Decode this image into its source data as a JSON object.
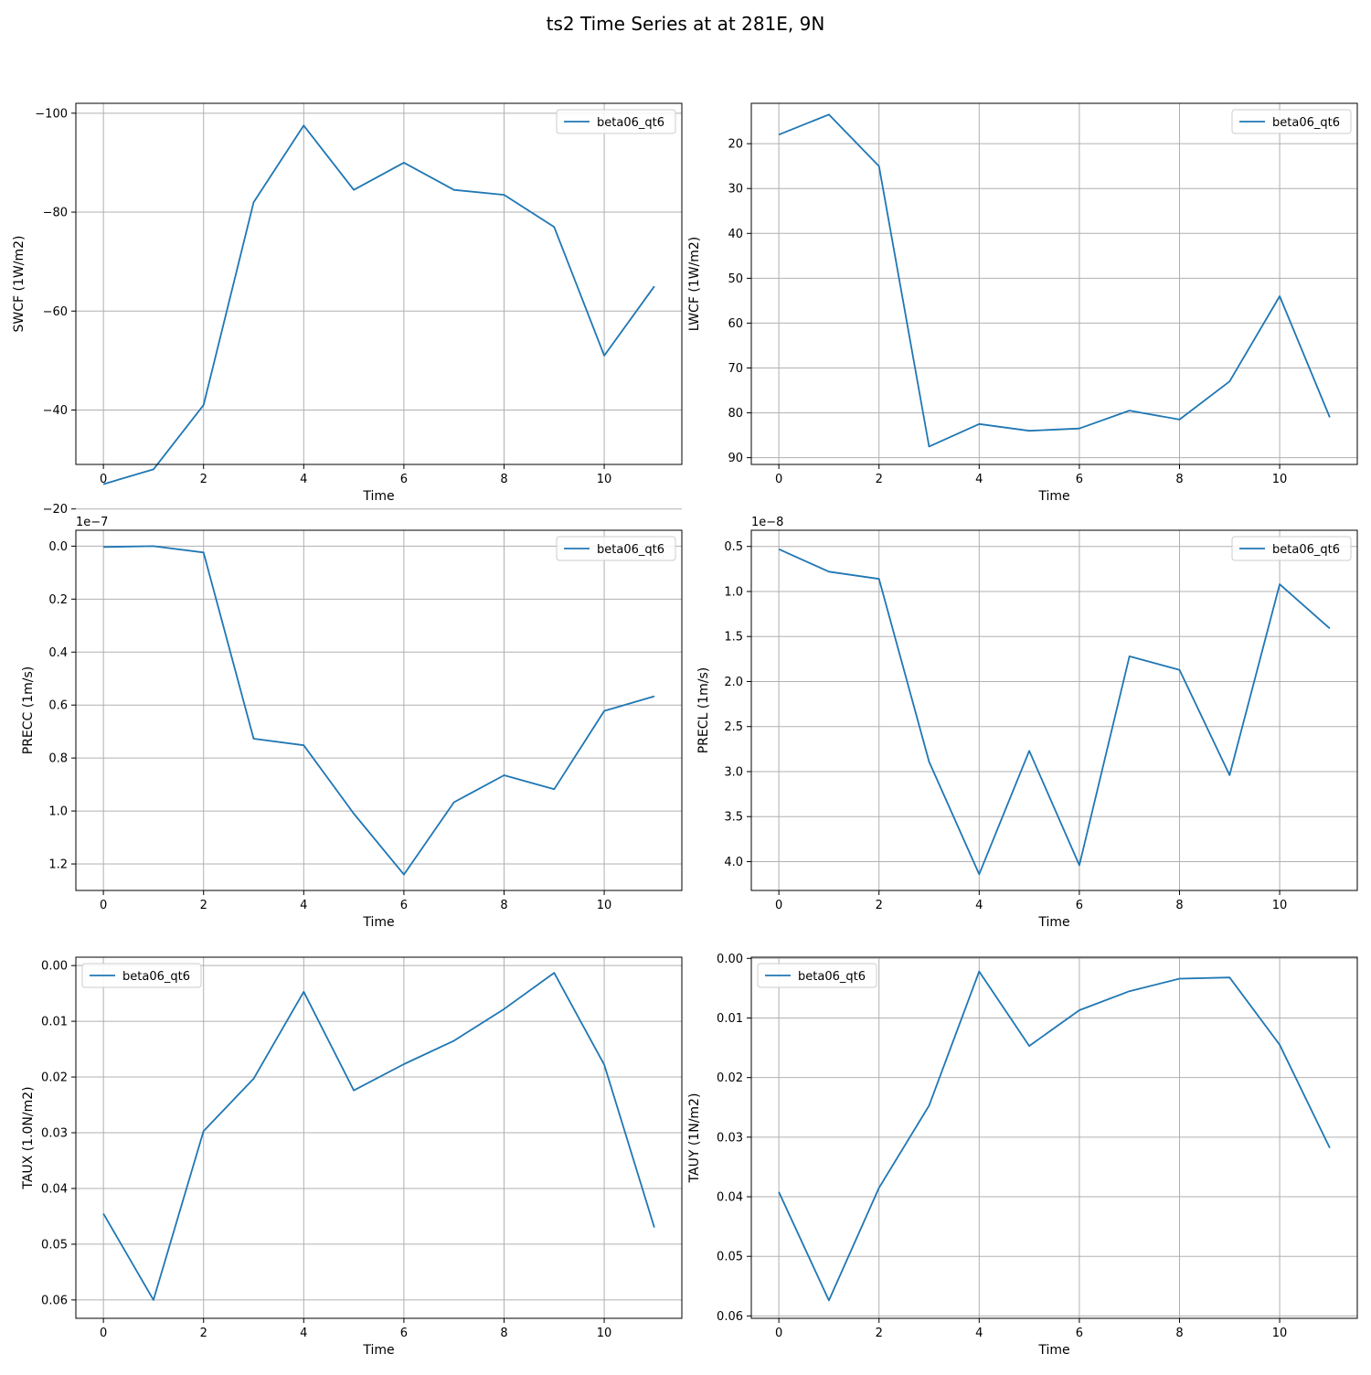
{
  "figure": {
    "title": "ts2 Time Series at at 281E, 9N"
  },
  "colors": {
    "series": "#1f77b4",
    "grid": "#b0b0b0",
    "axis": "#000000"
  },
  "chart_data": [
    {
      "type": "line",
      "xlabel": "Time",
      "ylabel": "SWCF (1W/m2)",
      "y_inverted": true,
      "xlim": [
        -0.55,
        11.55
      ],
      "ylim": [
        -29,
        -102
      ],
      "xticks": [
        0,
        2,
        4,
        6,
        8,
        10
      ],
      "yticks": [
        -100,
        -80,
        -60,
        -40,
        -20
      ],
      "offset_label": "",
      "legend_loc": "upper right",
      "grid": true,
      "series": [
        {
          "name": "beta06_qt6",
          "x": [
            0,
            1,
            2,
            3,
            4,
            5,
            6,
            7,
            8,
            9,
            10,
            11
          ],
          "y": [
            -25,
            -28,
            -41,
            -82,
            -97.5,
            -84.5,
            -90,
            -84.5,
            -83.5,
            -77,
            -51,
            -65
          ]
        }
      ]
    },
    {
      "type": "line",
      "xlabel": "Time",
      "ylabel": "LWCF (1W/m2)",
      "y_inverted": true,
      "xlim": [
        -0.55,
        11.55
      ],
      "ylim": [
        91.5,
        11
      ],
      "xticks": [
        0,
        2,
        4,
        6,
        8,
        10
      ],
      "yticks": [
        20,
        30,
        40,
        50,
        60,
        70,
        80,
        90
      ],
      "offset_label": "",
      "legend_loc": "upper right",
      "grid": true,
      "series": [
        {
          "name": "beta06_qt6",
          "x": [
            0,
            1,
            2,
            3,
            4,
            5,
            6,
            7,
            8,
            9,
            10,
            11
          ],
          "y": [
            18,
            13.5,
            25,
            87.5,
            82.5,
            84,
            83.5,
            79.5,
            81.5,
            73,
            54,
            81
          ]
        }
      ]
    },
    {
      "type": "line",
      "xlabel": "Time",
      "ylabel": "PRECC (1m/s)",
      "y_inverted": true,
      "xlim": [
        -0.55,
        11.55
      ],
      "ylim": [
        1.3,
        -0.06
      ],
      "xticks": [
        0,
        2,
        4,
        6,
        8,
        10
      ],
      "yticks": [
        0.0,
        0.2,
        0.4,
        0.6,
        0.8,
        1.0,
        1.2
      ],
      "offset_label": "1e−7",
      "legend_loc": "upper right",
      "grid": true,
      "series": [
        {
          "name": "beta06_qt6",
          "x": [
            0,
            1,
            2,
            3,
            4,
            5,
            6,
            7,
            8,
            9,
            10,
            11
          ],
          "y": [
            0.003,
            0,
            0.024,
            0.727,
            0.752,
            1.01,
            1.24,
            0.967,
            0.865,
            0.918,
            0.622,
            0.567
          ]
        }
      ]
    },
    {
      "type": "line",
      "xlabel": "Time",
      "ylabel": "PRECL (1m/s)",
      "y_inverted": true,
      "xlim": [
        -0.55,
        11.55
      ],
      "ylim": [
        4.32,
        0.32
      ],
      "xticks": [
        0,
        2,
        4,
        6,
        8,
        10
      ],
      "yticks": [
        0.5,
        1.0,
        1.5,
        2.0,
        2.5,
        3.0,
        3.5,
        4.0
      ],
      "offset_label": "1e−8",
      "legend_loc": "upper right",
      "grid": true,
      "series": [
        {
          "name": "beta06_qt6",
          "x": [
            0,
            1,
            2,
            3,
            4,
            5,
            6,
            7,
            8,
            9,
            10,
            11
          ],
          "y": [
            0.53,
            0.78,
            0.86,
            2.89,
            4.14,
            2.77,
            4.04,
            1.72,
            1.87,
            3.04,
            0.92,
            1.41
          ]
        }
      ]
    },
    {
      "type": "line",
      "xlabel": "Time",
      "ylabel": "TAUX (1.0N/m2)",
      "y_inverted": true,
      "xlim": [
        -0.55,
        11.55
      ],
      "ylim": [
        0.0633,
        -0.0015
      ],
      "xticks": [
        0,
        2,
        4,
        6,
        8,
        10
      ],
      "yticks": [
        0.0,
        0.01,
        0.02,
        0.03,
        0.04,
        0.05,
        0.06
      ],
      "offset_label": "",
      "legend_loc": "upper left",
      "grid": true,
      "series": [
        {
          "name": "beta06_qt6",
          "x": [
            0,
            1,
            2,
            3,
            4,
            5,
            6,
            7,
            8,
            9,
            10,
            11
          ],
          "y": [
            0.0445,
            0.06,
            0.0297,
            0.0203,
            0.0047,
            0.0224,
            0.0177,
            0.0135,
            0.0078,
            0.0013,
            0.0178,
            0.047
          ]
        }
      ]
    },
    {
      "type": "line",
      "xlabel": "Time",
      "ylabel": "TAUY (1N/m2)",
      "y_inverted": true,
      "xlim": [
        -0.55,
        11.55
      ],
      "ylim": [
        0.0604,
        -0.0002
      ],
      "xticks": [
        0,
        2,
        4,
        6,
        8,
        10
      ],
      "yticks": [
        0.0,
        0.01,
        0.02,
        0.03,
        0.04,
        0.05,
        0.06
      ],
      "offset_label": "",
      "legend_loc": "upper left",
      "grid": true,
      "series": [
        {
          "name": "beta06_qt6",
          "x": [
            0,
            1,
            2,
            3,
            4,
            5,
            6,
            7,
            8,
            9,
            10,
            11
          ],
          "y": [
            0.0392,
            0.0574,
            0.0385,
            0.0247,
            0.0022,
            0.0147,
            0.0087,
            0.0055,
            0.0034,
            0.0032,
            0.0145,
            0.0318
          ]
        }
      ]
    }
  ]
}
